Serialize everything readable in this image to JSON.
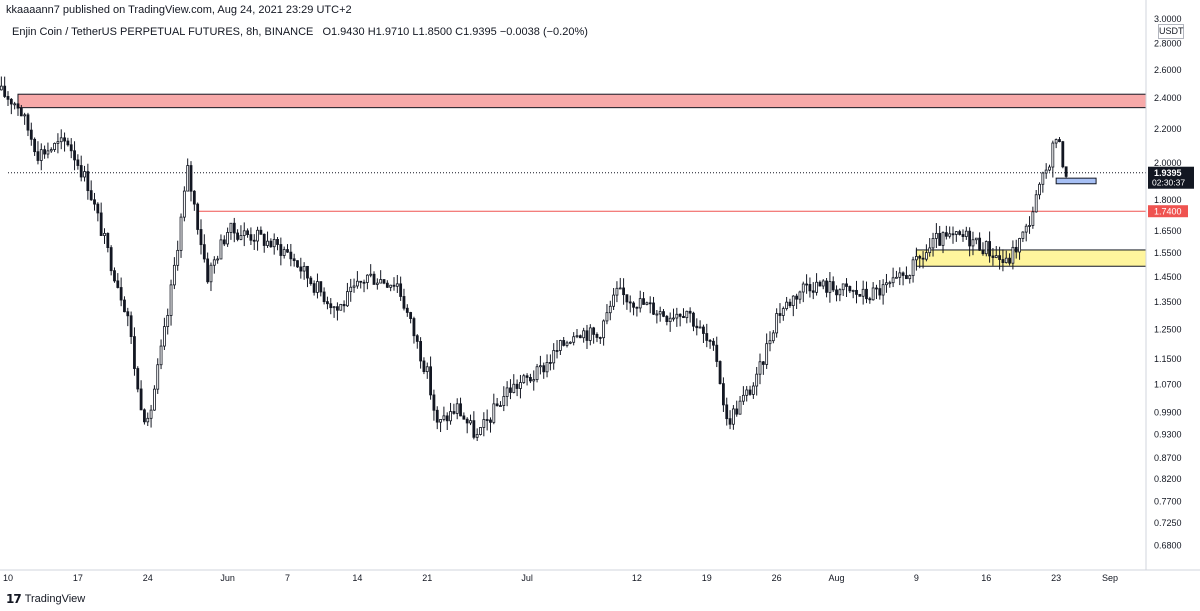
{
  "header": {
    "published_text": "kkaaaann7 published on TradingView.com, Aug 24, 2021 23:29 UTC+2"
  },
  "legend": {
    "symbol_text": "Enjin Coin / TetherUS PERPETUAL FUTURES, 8h, BINANCE",
    "ohlc_text": "O1.9430  H1.9710  L1.8500  C1.9395  −0.0038 (−0.20%)"
  },
  "footer": {
    "brand": "TradingView",
    "logo_icon": "tradingview-logo-icon"
  },
  "colors": {
    "up": "#26a69a",
    "down": "#ef5350",
    "candle": "#131722",
    "resistance_zone": "#f7a9a9",
    "support_zone": "#fff59d",
    "target_box": "#a7c0f5",
    "level_line": "#ef5350",
    "price_tag": "#131722",
    "level_tag": "#ef5350"
  },
  "chart_data": {
    "type": "candlestick",
    "title": "",
    "currency": "USDT",
    "y_scale": "log",
    "ylim": [
      0.64,
      3.0
    ],
    "y_ticks": [
      "3.0000",
      "2.8000",
      "2.6000",
      "2.4000",
      "2.2000",
      "2.0000",
      "1.8000",
      "1.6500",
      "1.5500",
      "1.4500",
      "1.3500",
      "1.2500",
      "1.1500",
      "1.0700",
      "0.9900",
      "0.9300",
      "0.8700",
      "0.8200",
      "0.7700",
      "0.7250",
      "0.6800"
    ],
    "x_ticks": [
      "10",
      "17",
      "24",
      "Jun",
      "7",
      "14",
      "21",
      "Jul",
      "12",
      "19",
      "26",
      "Aug",
      "9",
      "16",
      "23",
      "Sep"
    ],
    "x_range": [
      "2021-05-10",
      "2021-09-01"
    ],
    "last_price": {
      "value": 1.9395,
      "label": "1.9395",
      "countdown": "02:30:37"
    },
    "horizontal_level": {
      "value": 1.74,
      "label": "1.7400",
      "start_date": "2021-05-29"
    },
    "zones": [
      {
        "name": "resistance",
        "from_date": "2021-05-11",
        "y_low": 2.33,
        "y_high": 2.42
      },
      {
        "name": "support",
        "from_date": "2021-08-09",
        "y_low": 1.49,
        "y_high": 1.56
      },
      {
        "name": "target",
        "from_date": "2021-08-23",
        "to_date": "2021-08-27",
        "y_low": 1.88,
        "y_high": 1.91
      }
    ],
    "anchors": [
      [
        "2021-05-09",
        2.45
      ],
      [
        "2021-05-11",
        2.35
      ],
      [
        "2021-05-13",
        2.05
      ],
      [
        "2021-05-16",
        2.12
      ],
      [
        "2021-05-18",
        1.88
      ],
      [
        "2021-05-20",
        1.55
      ],
      [
        "2021-05-22",
        1.3
      ],
      [
        "2021-05-23",
        1.05
      ],
      [
        "2021-05-24",
        0.95
      ],
      [
        "2021-05-26",
        1.3
      ],
      [
        "2021-05-28",
        1.95
      ],
      [
        "2021-05-30",
        1.45
      ],
      [
        "2021-06-01",
        1.65
      ],
      [
        "2021-06-04",
        1.62
      ],
      [
        "2021-06-07",
        1.55
      ],
      [
        "2021-06-10",
        1.4
      ],
      [
        "2021-06-12",
        1.32
      ],
      [
        "2021-06-15",
        1.45
      ],
      [
        "2021-06-18",
        1.42
      ],
      [
        "2021-06-21",
        1.1
      ],
      [
        "2021-06-22",
        0.95
      ],
      [
        "2021-06-24",
        1.0
      ],
      [
        "2021-06-26",
        0.92
      ],
      [
        "2021-06-29",
        1.05
      ],
      [
        "2021-07-02",
        1.1
      ],
      [
        "2021-07-06",
        1.25
      ],
      [
        "2021-07-08",
        1.22
      ],
      [
        "2021-07-10",
        1.38
      ],
      [
        "2021-07-12",
        1.35
      ],
      [
        "2021-07-15",
        1.3
      ],
      [
        "2021-07-17",
        1.32
      ],
      [
        "2021-07-20",
        1.15
      ],
      [
        "2021-07-21",
        0.96
      ],
      [
        "2021-07-24",
        1.08
      ],
      [
        "2021-07-26",
        1.3
      ],
      [
        "2021-07-29",
        1.42
      ],
      [
        "2021-08-01",
        1.4
      ],
      [
        "2021-08-04",
        1.37
      ],
      [
        "2021-08-07",
        1.42
      ],
      [
        "2021-08-09",
        1.5
      ],
      [
        "2021-08-11",
        1.6
      ],
      [
        "2021-08-14",
        1.62
      ],
      [
        "2021-08-16",
        1.57
      ],
      [
        "2021-08-18",
        1.5
      ],
      [
        "2021-08-20",
        1.65
      ],
      [
        "2021-08-21",
        1.8
      ],
      [
        "2021-08-22",
        1.95
      ],
      [
        "2021-08-23",
        2.15
      ],
      [
        "2021-08-24",
        1.94
      ]
    ]
  }
}
